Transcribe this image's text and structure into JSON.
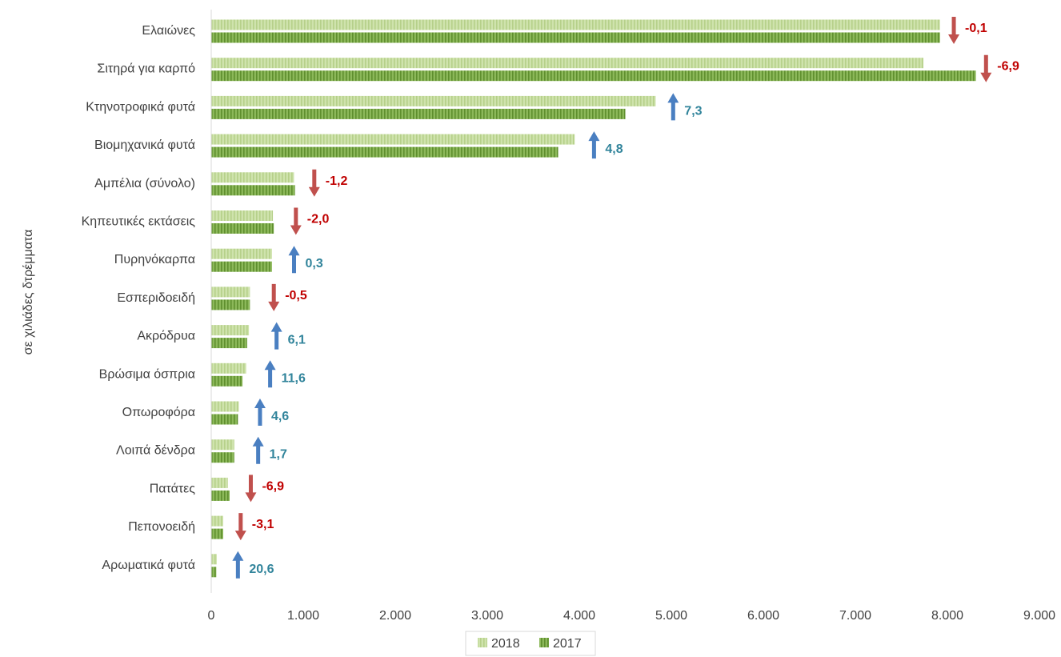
{
  "chart_data": {
    "type": "bar",
    "orientation": "horizontal",
    "ylabel": "σε χιλιάδες δτρέμματα",
    "xlim": [
      0,
      9000
    ],
    "xticks": [
      0,
      1000,
      2000,
      3000,
      4000,
      5000,
      6000,
      7000,
      8000,
      9000
    ],
    "xtick_labels": [
      "0",
      "1.000",
      "2.000",
      "3.000",
      "4.000",
      "5.000",
      "6.000",
      "7.000",
      "8.000",
      "9.000"
    ],
    "grid": false,
    "legend_position": "bottom",
    "categories": [
      "Ελαιώνες",
      "Σιτηρά για καρπό",
      "Κτηνοτροφικά φυτά",
      "Βιομηχανικά φυτά",
      "Αμπέλια  (σύνολο)",
      "Κηπευτικές εκτάσεις",
      "Πυρηνόκαρπα",
      "Εσπεριδοειδή",
      "Ακρόδρυα",
      "Βρώσιμα όσπρια",
      "Οπωροφόρα",
      "Λοιπά δένδρα",
      "Πατάτες ",
      "Πεπονοειδή",
      "Αρωματικά φυτά"
    ],
    "series": [
      {
        "name": "2018",
        "color": "#c5dca0",
        "values": [
          7920,
          7740,
          4830,
          3950,
          900,
          670,
          660,
          420,
          410,
          380,
          300,
          250,
          180,
          130,
          60
        ]
      },
      {
        "name": "2017",
        "color": "#77a83f",
        "values": [
          7920,
          8310,
          4500,
          3770,
          910,
          680,
          660,
          420,
          390,
          340,
          290,
          250,
          200,
          130,
          55
        ]
      }
    ],
    "change_percent": {
      "labels": [
        "-0,1",
        "-6,9",
        "7,3",
        "4,8",
        "-1,2",
        "-2,0",
        "0,3",
        "-0,5",
        "6,1",
        "11,6",
        "4,6",
        "1,7",
        "-6,9",
        "-3,1",
        "20,6"
      ],
      "directions": [
        "down",
        "down",
        "up",
        "up",
        "down",
        "down",
        "up",
        "down",
        "up",
        "up",
        "up",
        "up",
        "down",
        "down",
        "up"
      ],
      "arrow_at": [
        8070,
        8420,
        5020,
        4160,
        1120,
        920,
        900,
        680,
        710,
        640,
        530,
        510,
        430,
        320,
        290
      ],
      "up_color": "#4a7fc1",
      "up_text_color": "#31849b",
      "down_color": "#c0504d",
      "down_text_color": "#c00000"
    }
  }
}
